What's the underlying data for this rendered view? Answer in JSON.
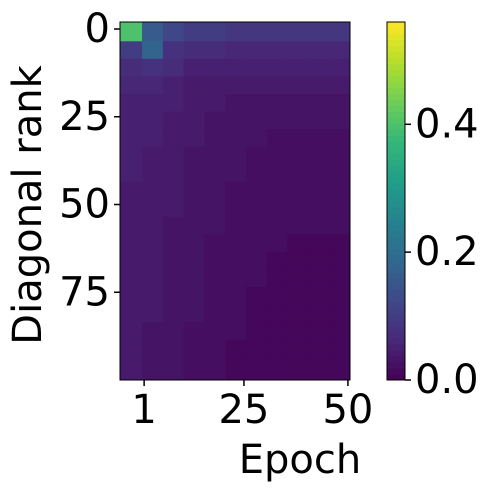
{
  "chart_data": {
    "type": "heatmap",
    "x_label": "Epoch",
    "y_label": "Diagonal rank",
    "x": [
      -2,
      3,
      8,
      13,
      18,
      23,
      28,
      33,
      38,
      43,
      48
    ],
    "y": [
      1,
      6,
      11,
      16,
      21,
      26,
      31,
      36,
      41,
      46,
      51,
      56,
      61,
      66,
      71,
      76,
      81,
      86,
      91,
      96
    ],
    "z": [
      [
        0.4,
        0.16,
        0.12,
        0.1,
        0.1,
        0.09,
        0.09,
        0.09,
        0.09,
        0.09,
        0.09
      ],
      [
        0.1,
        0.18,
        0.08,
        0.07,
        0.07,
        0.06,
        0.06,
        0.06,
        0.06,
        0.06,
        0.06
      ],
      [
        0.07,
        0.08,
        0.07,
        0.05,
        0.05,
        0.05,
        0.05,
        0.05,
        0.05,
        0.05,
        0.05
      ],
      [
        0.06,
        0.06,
        0.05,
        0.04,
        0.04,
        0.04,
        0.04,
        0.04,
        0.04,
        0.04,
        0.04
      ],
      [
        0.05,
        0.05,
        0.05,
        0.04,
        0.04,
        0.03,
        0.03,
        0.03,
        0.03,
        0.03,
        0.03
      ],
      [
        0.05,
        0.05,
        0.04,
        0.04,
        0.03,
        0.03,
        0.03,
        0.03,
        0.03,
        0.03,
        0.03
      ],
      [
        0.05,
        0.05,
        0.04,
        0.04,
        0.03,
        0.03,
        0.03,
        0.02,
        0.02,
        0.02,
        0.02
      ],
      [
        0.05,
        0.04,
        0.04,
        0.03,
        0.03,
        0.03,
        0.02,
        0.02,
        0.02,
        0.02,
        0.02
      ],
      [
        0.05,
        0.04,
        0.04,
        0.03,
        0.03,
        0.03,
        0.02,
        0.02,
        0.02,
        0.02,
        0.02
      ],
      [
        0.04,
        0.04,
        0.04,
        0.03,
        0.03,
        0.02,
        0.02,
        0.02,
        0.02,
        0.02,
        0.02
      ],
      [
        0.04,
        0.04,
        0.04,
        0.03,
        0.03,
        0.02,
        0.02,
        0.02,
        0.02,
        0.02,
        0.02
      ],
      [
        0.04,
        0.04,
        0.03,
        0.03,
        0.03,
        0.02,
        0.02,
        0.02,
        0.02,
        0.02,
        0.02
      ],
      [
        0.04,
        0.04,
        0.03,
        0.03,
        0.02,
        0.02,
        0.02,
        0.02,
        0.01,
        0.01,
        0.01
      ],
      [
        0.04,
        0.04,
        0.03,
        0.03,
        0.02,
        0.02,
        0.02,
        0.01,
        0.01,
        0.01,
        0.01
      ],
      [
        0.04,
        0.04,
        0.03,
        0.03,
        0.02,
        0.02,
        0.02,
        0.01,
        0.01,
        0.01,
        0.01
      ],
      [
        0.04,
        0.04,
        0.03,
        0.03,
        0.02,
        0.02,
        0.01,
        0.01,
        0.01,
        0.01,
        0.01
      ],
      [
        0.04,
        0.04,
        0.03,
        0.03,
        0.02,
        0.02,
        0.01,
        0.01,
        0.01,
        0.01,
        0.01
      ],
      [
        0.04,
        0.03,
        0.03,
        0.02,
        0.02,
        0.02,
        0.01,
        0.01,
        0.01,
        0.01,
        0.01
      ],
      [
        0.04,
        0.03,
        0.03,
        0.02,
        0.02,
        0.01,
        0.01,
        0.01,
        0.01,
        0.01,
        0.01
      ],
      [
        0.04,
        0.03,
        0.03,
        0.02,
        0.02,
        0.01,
        0.01,
        0.01,
        0.01,
        0.01,
        0.01
      ]
    ],
    "xlim": [
      -4.8,
      50.5
    ],
    "xticks": [
      1,
      25,
      50
    ],
    "ylim": [
      100,
      -2
    ],
    "yticks": [
      0,
      25,
      50,
      75
    ],
    "colormap": "viridis",
    "clim": [
      0,
      0.56
    ],
    "cticks": [
      {
        "value": 0,
        "label": "0.0"
      },
      0.2,
      0.4
    ]
  }
}
